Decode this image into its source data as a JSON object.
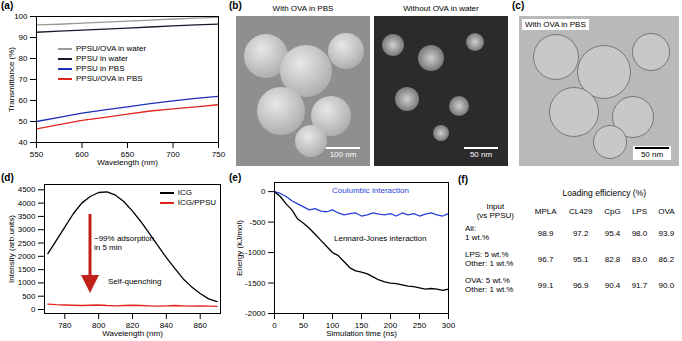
{
  "chart_data": [
    {
      "panel_label": "(a)",
      "type": "line",
      "x_label": "Wavelength (nm)",
      "y_label": "Transmittance (%)",
      "x": [
        550,
        575,
        600,
        625,
        650,
        675,
        700,
        725,
        750
      ],
      "xlim": [
        550,
        750
      ],
      "xticks": [
        550,
        600,
        650,
        700,
        750
      ],
      "ylim": [
        40,
        100
      ],
      "yticks": [
        40,
        50,
        60,
        70,
        80,
        90,
        100
      ],
      "legend": "center",
      "series": [
        {
          "name": "PPSU/OVA in water",
          "color": "#9a9a9a",
          "values": [
            96,
            96.3,
            96.8,
            97.3,
            97.8,
            98.3,
            98.8,
            99.2,
            99.6
          ]
        },
        {
          "name": "PPSU in water",
          "color": "#1a1a2e",
          "values": [
            92.5,
            93,
            93.5,
            94,
            94.5,
            95,
            95.5,
            96,
            96.4
          ]
        },
        {
          "name": "PPSU in PBS",
          "color": "#1f2fb8",
          "values": [
            50,
            52,
            54,
            55.5,
            57,
            58.5,
            59.8,
            61,
            62
          ]
        },
        {
          "name": "PPSU/OVA in PBS",
          "color": "#e0261f",
          "values": [
            46.5,
            48.5,
            50.5,
            52,
            53.5,
            55,
            56,
            57,
            58
          ]
        }
      ]
    },
    {
      "panel_label": "(d)",
      "type": "line",
      "x_label": "Wavelength (nm)",
      "y_label": "Intensity (arb.units)",
      "x": [
        770,
        775,
        780,
        785,
        790,
        795,
        800,
        805,
        810,
        815,
        820,
        825,
        830,
        835,
        840,
        845,
        850,
        855,
        860,
        865,
        870
      ],
      "xlim": [
        768,
        872
      ],
      "xticks": [
        780,
        800,
        820,
        840,
        860
      ],
      "ylim": [
        -150,
        4700
      ],
      "yticks": [
        0,
        500,
        1000,
        1500,
        2000,
        2500,
        3000,
        3500,
        4000,
        4500
      ],
      "legend": "upper right",
      "annotations": [
        "~99% adsorption\nin 5 min",
        "Self-quenching"
      ],
      "series": [
        {
          "name": "ICG",
          "color": "#000000",
          "values": [
            2100,
            2600,
            3100,
            3600,
            4000,
            4250,
            4400,
            4420,
            4300,
            4050,
            3700,
            3300,
            2850,
            2400,
            1950,
            1550,
            1150,
            850,
            600,
            400,
            300
          ]
        },
        {
          "name": "ICG/PPSU",
          "color": "#e0261f",
          "values": [
            200,
            180,
            170,
            160,
            150,
            160,
            170,
            150,
            140,
            150,
            160,
            150,
            140,
            130,
            140,
            150,
            140,
            130,
            140,
            130,
            120
          ]
        }
      ]
    },
    {
      "panel_label": "(e)",
      "type": "line",
      "x_label": "Simulation time (ns)",
      "y_label": "Energy (kJ/mol)",
      "x": [
        0,
        10,
        20,
        30,
        40,
        50,
        60,
        70,
        80,
        90,
        100,
        110,
        120,
        130,
        140,
        150,
        160,
        170,
        180,
        190,
        200,
        210,
        220,
        230,
        240,
        250,
        260,
        270,
        280,
        290,
        300
      ],
      "xlim": [
        0,
        300
      ],
      "xticks": [
        0,
        50,
        100,
        150,
        200,
        250,
        300
      ],
      "ylim": [
        -2000,
        150
      ],
      "yticks": [
        -2000,
        -1500,
        -1000,
        -500,
        0
      ],
      "series": [
        {
          "name": "Coulumbic interaction",
          "color": "#2a3fd6",
          "values": [
            0,
            -30,
            -80,
            -150,
            -200,
            -250,
            -300,
            -280,
            -320,
            -330,
            -300,
            -350,
            -380,
            -360,
            -350,
            -400,
            -380,
            -350,
            -370,
            -380,
            -360,
            -400,
            -350,
            -380,
            -360,
            -400,
            -370,
            -350,
            -380,
            -400,
            -360
          ]
        },
        {
          "name": "Lennard-Jones interaction",
          "color": "#000000",
          "values": [
            0,
            -80,
            -200,
            -300,
            -450,
            -520,
            -600,
            -700,
            -800,
            -900,
            -1000,
            -1050,
            -1150,
            -1250,
            -1300,
            -1320,
            -1350,
            -1400,
            -1450,
            -1480,
            -1500,
            -1510,
            -1530,
            -1550,
            -1560,
            -1580,
            -1600,
            -1590,
            -1600,
            -1620,
            -1600
          ]
        }
      ]
    }
  ],
  "images": [
    {
      "panel_label": "(b)",
      "frames": [
        {
          "caption": "With OVA in PBS",
          "scale_bar": "100 nm"
        },
        {
          "caption": "Without OVA in water",
          "scale_bar": "50 nm"
        }
      ]
    },
    {
      "panel_label": "(c)",
      "frames": [
        {
          "caption": "With OVA in PBS",
          "scale_bar": "50 nm"
        }
      ]
    }
  ],
  "table": {
    "panel_label": "(f)",
    "title": "Loading efficiency (%)",
    "header": [
      "Input\n(vs PPSU)",
      "MPLA",
      "CL429",
      "CpG",
      "LPS",
      "OVA"
    ],
    "rows": [
      [
        "All:\n1 wt.%",
        "98.9",
        "97.2",
        "95.4",
        "98.0",
        "93.9"
      ],
      [
        "LPS: 5 wt.%\nOther: 1 wt.%",
        "96.7",
        "95.1",
        "82.8",
        "83.0",
        "86.2"
      ],
      [
        "OVA: 5 wt.%\nOther: 1 wt.%",
        "99.1",
        "96.9",
        "90.4",
        "91.7",
        "90.0"
      ]
    ]
  }
}
